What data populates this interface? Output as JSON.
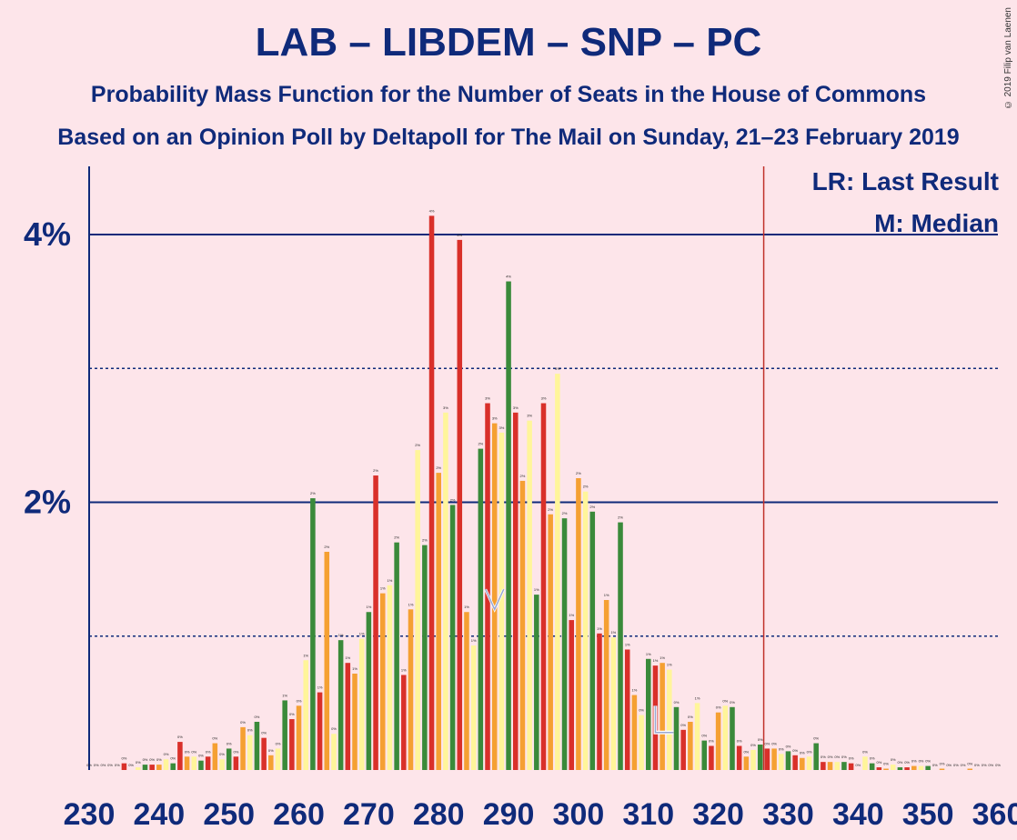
{
  "title": "LAB – LIBDEM – SNP – PC",
  "subtitle": "Probability Mass Function for the Number of Seats in the House of Commons",
  "subtitle2": "Based on an Opinion Poll by Deltapoll for The Mail on Sunday, 21–23 February 2019",
  "copyright": "© 2019 Filip van Laenen",
  "legend": {
    "lr": "LR: Last Result",
    "m": "M: Median"
  },
  "colors": {
    "green": "#3a8a3a",
    "red": "#d9302a",
    "orange": "#f5a032",
    "yellow": "#fff59a",
    "axis": "#0f2a7a",
    "lr_line": "#c0302a"
  },
  "chart_data": {
    "type": "bar",
    "xlim": [
      230,
      360
    ],
    "ylim": [
      0,
      4.5
    ],
    "yticks": [
      {
        "v": 2,
        "label": "2%"
      },
      {
        "v": 4,
        "label": "4%"
      }
    ],
    "xticks": [
      230,
      240,
      250,
      260,
      270,
      280,
      290,
      300,
      310,
      320,
      330,
      340,
      350,
      360
    ],
    "last_result": 326,
    "median": 288,
    "x": [
      230,
      231,
      232,
      233,
      234,
      235,
      236,
      237,
      238,
      239,
      240,
      241,
      242,
      243,
      244,
      245,
      246,
      247,
      248,
      249,
      250,
      251,
      252,
      253,
      254,
      255,
      256,
      257,
      258,
      259,
      260,
      261,
      262,
      263,
      264,
      265,
      266,
      267,
      268,
      269,
      270,
      271,
      272,
      273,
      274,
      275,
      276,
      277,
      278,
      279,
      280,
      281,
      282,
      283,
      284,
      285,
      286,
      287,
      288,
      289,
      290,
      291,
      292,
      293,
      294,
      295,
      296,
      297,
      298,
      299,
      300,
      301,
      302,
      303,
      304,
      305,
      306,
      307,
      308,
      309,
      310,
      311,
      312,
      313,
      314,
      315,
      316,
      317,
      318,
      319,
      320,
      321,
      322,
      323,
      324,
      325,
      326,
      327,
      328,
      329,
      330,
      331,
      332,
      333,
      334,
      335,
      336,
      337,
      338,
      339,
      340,
      341,
      342,
      343,
      344,
      345,
      346,
      347,
      348,
      349,
      350,
      351,
      352,
      353,
      354,
      355,
      356,
      357,
      358,
      359,
      360
    ],
    "values": [
      0.0,
      0.0,
      0.0,
      0.0,
      0.0,
      0.05,
      0.0,
      0.02,
      0.04,
      0.04,
      0.04,
      0.08,
      0.05,
      0.21,
      0.1,
      0.1,
      0.07,
      0.1,
      0.2,
      0.08,
      0.16,
      0.1,
      0.32,
      0.26,
      0.36,
      0.24,
      0.11,
      0.16,
      0.52,
      0.38,
      0.48,
      0.82,
      2.03,
      0.58,
      1.63,
      0.27,
      0.97,
      0.8,
      0.72,
      0.98,
      1.18,
      2.2,
      1.32,
      1.38,
      1.7,
      0.71,
      1.2,
      2.39,
      1.68,
      4.14,
      2.22,
      2.67,
      1.98,
      3.96,
      1.18,
      0.93,
      2.4,
      2.74,
      2.59,
      2.52,
      3.65,
      2.67,
      2.16,
      2.61,
      1.31,
      2.74,
      1.91,
      2.96,
      1.88,
      1.12,
      2.18,
      2.08,
      1.93,
      1.02,
      1.27,
      0.99,
      1.85,
      0.9,
      0.56,
      0.41,
      0.83,
      0.78,
      0.8,
      0.75,
      0.47,
      0.3,
      0.36,
      0.5,
      0.22,
      0.18,
      0.43,
      0.48,
      0.47,
      0.18,
      0.1,
      0.15,
      0.19,
      0.16,
      0.16,
      0.12,
      0.14,
      0.11,
      0.09,
      0.1,
      0.2,
      0.06,
      0.06,
      0.06,
      0.06,
      0.05,
      0.0,
      0.1,
      0.05,
      0.02,
      0.01,
      0.04,
      0.02,
      0.02,
      0.03,
      0.03,
      0.03,
      0.0,
      0.01,
      0.0,
      0.0,
      0.0,
      0.01,
      0.0,
      0.0,
      0.0,
      0.0
    ]
  }
}
